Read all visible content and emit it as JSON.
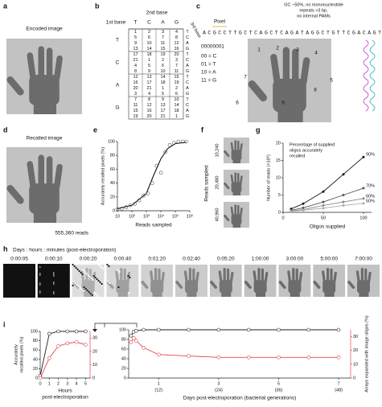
{
  "panel_labels": [
    "a",
    "b",
    "c",
    "d",
    "e",
    "f",
    "g",
    "h",
    "i"
  ],
  "a": {
    "title": "Encoded image"
  },
  "b": {
    "second_base": "2nd base",
    "first_base": "1st base",
    "third_base": "3rd base",
    "columns": [
      "T",
      "C",
      "A",
      "G"
    ],
    "rows": [
      "T",
      "C",
      "A",
      "G"
    ],
    "third": [
      "T",
      "C",
      "A",
      "G"
    ],
    "cells": [
      [
        1,
        2,
        3,
        4
      ],
      [
        5,
        6,
        7,
        8
      ],
      [
        9,
        10,
        11,
        12
      ],
      [
        13,
        14,
        15,
        16
      ],
      [
        17,
        18,
        19,
        20
      ],
      [
        21,
        1,
        2,
        3
      ],
      [
        4,
        5,
        6,
        7
      ],
      [
        8,
        9,
        10,
        11
      ],
      [
        12,
        13,
        14,
        15
      ],
      [
        16,
        17,
        18,
        19
      ],
      [
        20,
        21,
        1,
        2
      ],
      [
        3,
        4,
        5,
        6
      ],
      [
        7,
        8,
        9,
        10
      ],
      [
        11,
        12,
        13,
        14
      ],
      [
        15,
        16,
        17,
        18
      ],
      [
        19,
        20,
        21,
        1
      ]
    ]
  },
  "c": {
    "note": [
      "GC ~50%, no mononucleotide",
      "repeats >3 bp,",
      "no internal PAMs"
    ],
    "pixel": "Pixel",
    "sequence": "ACGCCTTGCTCAGCTCAGATAGGCTGTTCGACAGT",
    "pixel_value": "00000001",
    "code": [
      "00 = C",
      "01 = T",
      "10 = A",
      "11 = G"
    ],
    "pixel_numbers": [
      "1",
      "2",
      "3",
      "4",
      "5",
      "6",
      "7",
      "8",
      "9"
    ]
  },
  "d": {
    "title": "Recalled image",
    "reads": "555,360 reads"
  },
  "f": {
    "ylabel": "Reads sampled",
    "samples": [
      "10,240",
      "20,480",
      "40,960"
    ]
  },
  "h": {
    "title": "Days : hours : minutes (post-electroporation)",
    "times": [
      "0:00:05",
      "0:00:10",
      "0:00:20",
      "0:00:40",
      "0:01:20",
      "0:02:40",
      "0:05:20",
      "1:00:00",
      "3:00:00",
      "5:00:00",
      "7:00:00"
    ]
  },
  "chart_data": [
    {
      "type": "scatter",
      "ylabel": "Accurately recalled pixels (%)",
      "xlabel": "Reads sampled",
      "xscale": "log",
      "xlim": [
        10,
        1000000
      ],
      "ylim": [
        0,
        100
      ],
      "xticks": [
        10,
        {
          "value": 100,
          "label": "10²"
        },
        {
          "value": 1000,
          "label": "10³"
        },
        {
          "value": 10000,
          "label": "10⁴"
        },
        {
          "value": 100000,
          "label": "10⁵"
        },
        {
          "value": 1000000,
          "label": "10⁶"
        }
      ],
      "yticks": [
        0,
        20,
        40,
        60,
        80,
        100
      ],
      "color": "#555",
      "x": [
        10,
        20,
        40,
        80,
        160,
        320,
        640,
        1280,
        2560,
        5120,
        10240,
        20480,
        40960,
        81920,
        163840,
        327680,
        555360
      ],
      "values": [
        2,
        3,
        5,
        8,
        10,
        15,
        22,
        25,
        40,
        65,
        55,
        85,
        95,
        98,
        100,
        100,
        100
      ],
      "fit": {
        "color": "#111",
        "x": [
          10,
          100,
          1000,
          3000,
          10000,
          30000,
          100000,
          555360
        ],
        "values": [
          3,
          8,
          25,
          50,
          75,
          90,
          97,
          99
        ]
      }
    },
    {
      "type": "line",
      "annotation": [
        "Percentage of supplied",
        "oligos accurately",
        "recalled"
      ],
      "ylabel": "Number of reads (×10⁵)",
      "xlabel": "Oligos supplied",
      "xlim": [
        0,
        110
      ],
      "ylim": [
        0,
        20
      ],
      "xticks": [
        0,
        50,
        100
      ],
      "yticks": [
        0,
        5,
        10,
        15,
        20
      ],
      "x": [
        10,
        25,
        50,
        75,
        100
      ],
      "series": [
        {
          "name": "90%",
          "color": "#111",
          "values": [
            1,
            2.5,
            6,
            11,
            16
          ]
        },
        {
          "name": "70%",
          "color": "#555",
          "values": [
            0.6,
            1.3,
            3,
            5,
            7
          ]
        },
        {
          "name": "60%",
          "color": "#888",
          "values": [
            0.4,
            0.8,
            2,
            3,
            4
          ]
        },
        {
          "name": "50%",
          "color": "#aaa",
          "values": [
            0.3,
            0.6,
            1.2,
            2,
            2.6
          ]
        }
      ]
    },
    {
      "type": "dual_line",
      "xlabel": [
        "Hours",
        "post-electroporation"
      ],
      "ylabel": [
        "Accurately",
        "recalled pixels (%)"
      ],
      "xlim": [
        0,
        5.5
      ],
      "ylim": [
        0,
        100
      ],
      "y2lim": [
        0,
        35
      ],
      "xticks": [
        0,
        1,
        2,
        3,
        4,
        5
      ],
      "yticks": [
        0,
        20,
        40,
        60,
        80,
        100
      ],
      "y2ticks": [
        0,
        10,
        20,
        30
      ],
      "x": [
        0,
        1,
        2,
        3,
        4,
        5
      ],
      "series": [
        {
          "color": "#222",
          "values": [
            5,
            95,
            100,
            100,
            100,
            100
          ]
        },
        {
          "color": "#e0474c",
          "axis": "y2",
          "values": [
            0,
            15,
            24,
            26,
            27,
            25
          ]
        }
      ]
    },
    {
      "type": "dual_line",
      "xlabel": "Days post-electroporation (bacterial generations)",
      "y2label": "Arrays expanded with image oligos (%)",
      "xlim": [
        0,
        7.4
      ],
      "ylim": [
        0,
        100
      ],
      "y2lim": [
        0,
        35
      ],
      "xticks": [
        1,
        3,
        5,
        7
      ],
      "xtick_sublabels": [
        "(12)",
        "(24)",
        "(36)",
        "(48)"
      ],
      "yticks": [
        0,
        20,
        40,
        60,
        80,
        100
      ],
      "y2ticks": [
        0,
        10,
        20,
        30
      ],
      "x": [
        0.08,
        0.17,
        0.25,
        0.5,
        1,
        2,
        3,
        4,
        5,
        6,
        7
      ],
      "series": [
        {
          "color": "#222",
          "values": [
            88,
            96,
            98,
            100,
            100,
            100,
            100,
            100,
            100,
            100,
            100
          ]
        },
        {
          "color": "#e0474c",
          "axis": "y2",
          "values": [
            26,
            29,
            27,
            22,
            17,
            16,
            15,
            15,
            15,
            15,
            15
          ]
        }
      ]
    }
  ]
}
